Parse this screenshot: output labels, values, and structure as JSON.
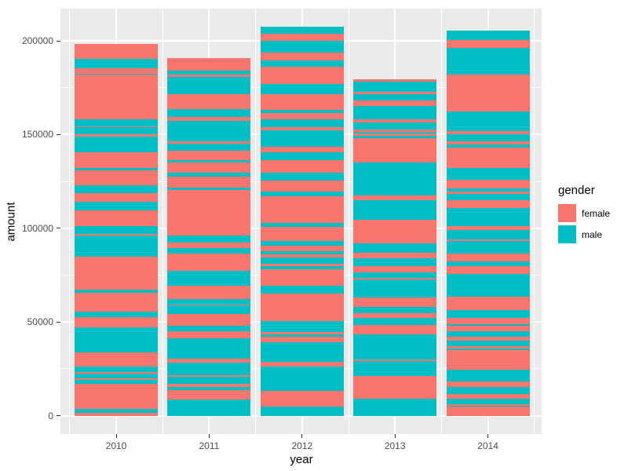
{
  "chart_data": {
    "type": "bar",
    "title": "",
    "xlabel": "year",
    "ylabel": "amount",
    "categories": [
      "2010",
      "2011",
      "2012",
      "2013",
      "2014"
    ],
    "y_ticks": [
      0,
      50000,
      100000,
      150000,
      200000
    ],
    "y_tick_labels": [
      "0",
      "50000",
      "100000",
      "150000",
      "200000"
    ],
    "y_minor_ticks": [
      25000,
      75000,
      125000,
      175000
    ],
    "ylim": [
      -10400,
      217200
    ],
    "grid": "on",
    "legend": {
      "title": "gender",
      "position": "right",
      "entries": [
        {
          "label": "female",
          "color": "#F8766D"
        },
        {
          "label": "male",
          "color": "#00BFC4"
        }
      ]
    },
    "colors": {
      "female": "#F8766D",
      "male": "#00BFC4",
      "panel": "#EBEBEB",
      "grid": "#FFFFFF",
      "axis_text": "#4D4D4D",
      "tick": "#333333"
    },
    "totals": {
      "2010": 198500,
      "2011": 191000,
      "2012": 207900,
      "2013": 179600,
      "2014": 205700
    },
    "bars_note": "unaggregated stacked records, bottom-to-top, g=f female / m male, v=amount",
    "bars": {
      "2010": [
        {
          "g": "f",
          "v": 1500
        },
        {
          "g": "m",
          "v": 2000
        },
        {
          "g": "f",
          "v": 13500
        },
        {
          "g": "m",
          "v": 2000
        },
        {
          "g": "f",
          "v": 1000
        },
        {
          "g": "m",
          "v": 2500
        },
        {
          "g": "f",
          "v": 800
        },
        {
          "g": "m",
          "v": 2800
        },
        {
          "g": "f",
          "v": 7700
        },
        {
          "g": "m",
          "v": 13300
        },
        {
          "g": "f",
          "v": 5300
        },
        {
          "g": "m",
          "v": 3100
        },
        {
          "g": "f",
          "v": 10000
        },
        {
          "g": "m",
          "v": 1800
        },
        {
          "g": "f",
          "v": 17700
        },
        {
          "g": "m",
          "v": 11000
        },
        {
          "g": "f",
          "v": 1200
        },
        {
          "g": "m",
          "v": 4200
        },
        {
          "g": "f",
          "v": 8400
        },
        {
          "g": "m",
          "v": 4200
        },
        {
          "g": "f",
          "v": 4900
        },
        {
          "g": "m",
          "v": 4200
        },
        {
          "g": "f",
          "v": 7700
        },
        {
          "g": "m",
          "v": 1400
        },
        {
          "g": "f",
          "v": 8400
        },
        {
          "g": "m",
          "v": 8400
        },
        {
          "g": "f",
          "v": 1400
        },
        {
          "g": "m",
          "v": 3500
        },
        {
          "g": "f",
          "v": 700
        },
        {
          "g": "m",
          "v": 3500
        },
        {
          "g": "f",
          "v": 24000
        },
        {
          "g": "m",
          "v": 600
        },
        {
          "g": "f",
          "v": 2600
        },
        {
          "g": "m",
          "v": 5200
        },
        {
          "g": "f",
          "v": 8000
        }
      ],
      "2011": [
        {
          "g": "m",
          "v": 8400
        },
        {
          "g": "f",
          "v": 5300
        },
        {
          "g": "m",
          "v": 1700
        },
        {
          "g": "f",
          "v": 1400
        },
        {
          "g": "m",
          "v": 3800
        },
        {
          "g": "f",
          "v": 800
        },
        {
          "g": "m",
          "v": 7000
        },
        {
          "g": "f",
          "v": 2100
        },
        {
          "g": "m",
          "v": 10700
        },
        {
          "g": "f",
          "v": 3900
        },
        {
          "g": "m",
          "v": 3100
        },
        {
          "g": "f",
          "v": 6000
        },
        {
          "g": "m",
          "v": 4600
        },
        {
          "g": "f",
          "v": 500
        },
        {
          "g": "m",
          "v": 2800
        },
        {
          "g": "f",
          "v": 7400
        },
        {
          "g": "m",
          "v": 8000
        },
        {
          "g": "f",
          "v": 9200
        },
        {
          "g": "m",
          "v": 2800
        },
        {
          "g": "f",
          "v": 2800
        },
        {
          "g": "m",
          "v": 3800
        },
        {
          "g": "f",
          "v": 24400
        },
        {
          "g": "m",
          "v": 1400
        },
        {
          "g": "f",
          "v": 5600
        },
        {
          "g": "m",
          "v": 2100
        },
        {
          "g": "f",
          "v": 5600
        },
        {
          "g": "m",
          "v": 1400
        },
        {
          "g": "f",
          "v": 4900
        },
        {
          "g": "m",
          "v": 3800
        },
        {
          "g": "f",
          "v": 1100
        },
        {
          "g": "m",
          "v": 11200
        },
        {
          "g": "f",
          "v": 2100
        },
        {
          "g": "m",
          "v": 4200
        },
        {
          "g": "f",
          "v": 7700
        },
        {
          "g": "m",
          "v": 9100
        },
        {
          "g": "f",
          "v": 1400
        },
        {
          "g": "m",
          "v": 2100
        },
        {
          "g": "f",
          "v": 6800
        }
      ],
      "2012": [
        {
          "g": "m",
          "v": 4700
        },
        {
          "g": "f",
          "v": 8600
        },
        {
          "g": "m",
          "v": 12900
        },
        {
          "g": "f",
          "v": 2500
        },
        {
          "g": "m",
          "v": 10500
        },
        {
          "g": "f",
          "v": 2800
        },
        {
          "g": "m",
          "v": 1400
        },
        {
          "g": "f",
          "v": 1400
        },
        {
          "g": "m",
          "v": 5600
        },
        {
          "g": "f",
          "v": 14700
        },
        {
          "g": "m",
          "v": 4200
        },
        {
          "g": "f",
          "v": 9000
        },
        {
          "g": "m",
          "v": 1400
        },
        {
          "g": "f",
          "v": 1400
        },
        {
          "g": "m",
          "v": 3500
        },
        {
          "g": "f",
          "v": 1700
        },
        {
          "g": "m",
          "v": 1400
        },
        {
          "g": "f",
          "v": 3200
        },
        {
          "g": "m",
          "v": 2400
        },
        {
          "g": "f",
          "v": 7400
        },
        {
          "g": "m",
          "v": 2100
        },
        {
          "g": "f",
          "v": 14200
        },
        {
          "g": "m",
          "v": 2800
        },
        {
          "g": "f",
          "v": 5600
        },
        {
          "g": "m",
          "v": 4200
        },
        {
          "g": "f",
          "v": 7000
        },
        {
          "g": "m",
          "v": 4200
        },
        {
          "g": "f",
          "v": 2800
        },
        {
          "g": "m",
          "v": 8700
        },
        {
          "g": "f",
          "v": 1800
        },
        {
          "g": "m",
          "v": 4200
        },
        {
          "g": "f",
          "v": 3500
        },
        {
          "g": "m",
          "v": 1400
        },
        {
          "g": "f",
          "v": 8600
        },
        {
          "g": "m",
          "v": 5300
        },
        {
          "g": "f",
          "v": 9100
        },
        {
          "g": "m",
          "v": 3500
        },
        {
          "g": "f",
          "v": 4200
        },
        {
          "g": "m",
          "v": 6300
        },
        {
          "g": "f",
          "v": 3800
        },
        {
          "g": "m",
          "v": 3900
        }
      ],
      "2013": [
        {
          "g": "m",
          "v": 9100
        },
        {
          "g": "f",
          "v": 11900
        },
        {
          "g": "m",
          "v": 8100
        },
        {
          "g": "f",
          "v": 1000
        },
        {
          "g": "m",
          "v": 13300
        },
        {
          "g": "f",
          "v": 4900
        },
        {
          "g": "m",
          "v": 3800
        },
        {
          "g": "f",
          "v": 2500
        },
        {
          "g": "m",
          "v": 3500
        },
        {
          "g": "f",
          "v": 4900
        },
        {
          "g": "m",
          "v": 9800
        },
        {
          "g": "f",
          "v": 700
        },
        {
          "g": "m",
          "v": 2800
        },
        {
          "g": "f",
          "v": 3500
        },
        {
          "g": "m",
          "v": 4200
        },
        {
          "g": "f",
          "v": 3100
        },
        {
          "g": "m",
          "v": 4700
        },
        {
          "g": "f",
          "v": 12600
        },
        {
          "g": "m",
          "v": 10500
        },
        {
          "g": "f",
          "v": 2800
        },
        {
          "g": "m",
          "v": 17500
        },
        {
          "g": "f",
          "v": 13000
        },
        {
          "g": "m",
          "v": 1000
        },
        {
          "g": "f",
          "v": 1400
        },
        {
          "g": "m",
          "v": 1000
        },
        {
          "g": "f",
          "v": 1100
        },
        {
          "g": "m",
          "v": 3900
        },
        {
          "g": "f",
          "v": 1700
        },
        {
          "g": "m",
          "v": 7000
        },
        {
          "g": "f",
          "v": 3100
        },
        {
          "g": "m",
          "v": 3200
        },
        {
          "g": "f",
          "v": 1400
        },
        {
          "g": "m",
          "v": 5200
        },
        {
          "g": "f",
          "v": 1400
        }
      ],
      "2014": [
        {
          "g": "f",
          "v": 4700
        },
        {
          "g": "m",
          "v": 700
        },
        {
          "g": "f",
          "v": 800
        },
        {
          "g": "m",
          "v": 2800
        },
        {
          "g": "f",
          "v": 2400
        },
        {
          "g": "m",
          "v": 3900
        },
        {
          "g": "f",
          "v": 2800
        },
        {
          "g": "m",
          "v": 6300
        },
        {
          "g": "f",
          "v": 10500
        },
        {
          "g": "m",
          "v": 1000
        },
        {
          "g": "f",
          "v": 1400
        },
        {
          "g": "m",
          "v": 2800
        },
        {
          "g": "f",
          "v": 2100
        },
        {
          "g": "m",
          "v": 3000
        },
        {
          "g": "f",
          "v": 2800
        },
        {
          "g": "m",
          "v": 700
        },
        {
          "g": "f",
          "v": 3500
        },
        {
          "g": "m",
          "v": 4200
        },
        {
          "g": "f",
          "v": 7000
        },
        {
          "g": "m",
          "v": 12100
        },
        {
          "g": "f",
          "v": 4600
        },
        {
          "g": "m",
          "v": 2400
        },
        {
          "g": "f",
          "v": 4200
        },
        {
          "g": "m",
          "v": 6700
        },
        {
          "g": "f",
          "v": 700
        },
        {
          "g": "m",
          "v": 4900
        },
        {
          "g": "f",
          "v": 2100
        },
        {
          "g": "m",
          "v": 9800
        },
        {
          "g": "f",
          "v": 4200
        },
        {
          "g": "m",
          "v": 3500
        },
        {
          "g": "f",
          "v": 1100
        },
        {
          "g": "m",
          "v": 1700
        },
        {
          "g": "f",
          "v": 4800
        },
        {
          "g": "m",
          "v": 6300
        },
        {
          "g": "f",
          "v": 10500
        },
        {
          "g": "m",
          "v": 1800
        },
        {
          "g": "f",
          "v": 1700
        },
        {
          "g": "m",
          "v": 3900
        },
        {
          "g": "f",
          "v": 1700
        },
        {
          "g": "m",
          "v": 10400
        },
        {
          "g": "f",
          "v": 19500
        },
        {
          "g": "m",
          "v": 14600
        },
        {
          "g": "f",
          "v": 4200
        },
        {
          "g": "m",
          "v": 4900
        }
      ]
    }
  }
}
